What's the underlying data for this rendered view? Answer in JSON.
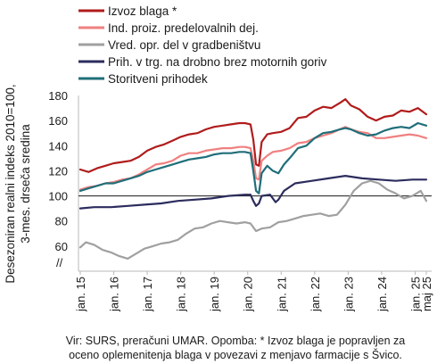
{
  "chart_data": {
    "type": "line",
    "ylabel_lines": [
      "Desezoniran realni indeks 2010=100,",
      "3-mes. drseča sredina"
    ],
    "ylim": [
      40,
      180
    ],
    "yticks": [
      60,
      80,
      100,
      120,
      140,
      160,
      180
    ],
    "axis_break_label": "//",
    "reference_line": 100,
    "x_start": "2015-01",
    "x_end": "2025-05",
    "xticks": [
      {
        "date": "2015-01",
        "label": "jan. 15"
      },
      {
        "date": "2016-01",
        "label": "jan. 16"
      },
      {
        "date": "2017-01",
        "label": "jan. 17"
      },
      {
        "date": "2018-01",
        "label": "jan. 18"
      },
      {
        "date": "2019-01",
        "label": "jan. 19"
      },
      {
        "date": "2020-01",
        "label": "jan. 20"
      },
      {
        "date": "2021-01",
        "label": "jan. 21"
      },
      {
        "date": "2022-01",
        "label": "jan. 22"
      },
      {
        "date": "2023-01",
        "label": "jan. 23"
      },
      {
        "date": "2024-01",
        "label": "jan. 24"
      },
      {
        "date": "2025-01",
        "label": "jan. 25"
      },
      {
        "date": "2025-05",
        "label": "maj 25"
      }
    ],
    "series": [
      {
        "name": "Izvoz blaga *",
        "color": "#b01c1c",
        "points": [
          [
            "2015-01",
            121
          ],
          [
            "2015-04",
            119
          ],
          [
            "2015-07",
            122
          ],
          [
            "2015-10",
            124
          ],
          [
            "2016-01",
            126
          ],
          [
            "2016-04",
            127
          ],
          [
            "2016-07",
            128
          ],
          [
            "2016-10",
            131
          ],
          [
            "2017-01",
            136
          ],
          [
            "2017-04",
            139
          ],
          [
            "2017-07",
            141
          ],
          [
            "2017-10",
            144
          ],
          [
            "2018-01",
            147
          ],
          [
            "2018-04",
            149
          ],
          [
            "2018-07",
            150
          ],
          [
            "2018-10",
            153
          ],
          [
            "2019-01",
            155
          ],
          [
            "2019-04",
            156
          ],
          [
            "2019-07",
            157
          ],
          [
            "2019-10",
            158
          ],
          [
            "2019-12",
            158
          ],
          [
            "2020-02",
            157
          ],
          [
            "2020-03",
            145
          ],
          [
            "2020-04",
            125
          ],
          [
            "2020-05",
            124
          ],
          [
            "2020-06",
            143
          ],
          [
            "2020-08",
            149
          ],
          [
            "2020-10",
            150
          ],
          [
            "2021-01",
            151
          ],
          [
            "2021-04",
            154
          ],
          [
            "2021-07",
            162
          ],
          [
            "2021-10",
            163
          ],
          [
            "2022-01",
            168
          ],
          [
            "2022-04",
            171
          ],
          [
            "2022-07",
            170
          ],
          [
            "2022-10",
            174
          ],
          [
            "2022-12",
            177
          ],
          [
            "2023-02",
            172
          ],
          [
            "2023-05",
            169
          ],
          [
            "2023-08",
            163
          ],
          [
            "2023-11",
            160
          ],
          [
            "2024-02",
            163
          ],
          [
            "2024-05",
            164
          ],
          [
            "2024-08",
            168
          ],
          [
            "2024-11",
            167
          ],
          [
            "2025-02",
            170
          ],
          [
            "2025-05",
            165
          ]
        ]
      },
      {
        "name": "Ind. proiz. predelovalnih dej.",
        "color": "#f08080",
        "points": [
          [
            "2015-01",
            105
          ],
          [
            "2015-04",
            107
          ],
          [
            "2015-07",
            108
          ],
          [
            "2015-10",
            110
          ],
          [
            "2016-01",
            111
          ],
          [
            "2016-04",
            113
          ],
          [
            "2016-07",
            114
          ],
          [
            "2016-10",
            117
          ],
          [
            "2017-01",
            121
          ],
          [
            "2017-04",
            125
          ],
          [
            "2017-07",
            126
          ],
          [
            "2017-10",
            128
          ],
          [
            "2018-01",
            132
          ],
          [
            "2018-04",
            134
          ],
          [
            "2018-07",
            134
          ],
          [
            "2018-10",
            136
          ],
          [
            "2019-01",
            137
          ],
          [
            "2019-04",
            138
          ],
          [
            "2019-07",
            138
          ],
          [
            "2019-10",
            139
          ],
          [
            "2019-12",
            139
          ],
          [
            "2020-02",
            138
          ],
          [
            "2020-03",
            128
          ],
          [
            "2020-04",
            114
          ],
          [
            "2020-05",
            113
          ],
          [
            "2020-06",
            128
          ],
          [
            "2020-08",
            132
          ],
          [
            "2020-10",
            135
          ],
          [
            "2021-01",
            136
          ],
          [
            "2021-04",
            138
          ],
          [
            "2021-07",
            142
          ],
          [
            "2021-10",
            143
          ],
          [
            "2022-01",
            146
          ],
          [
            "2022-04",
            148
          ],
          [
            "2022-07",
            150
          ],
          [
            "2022-10",
            153
          ],
          [
            "2022-12",
            155
          ],
          [
            "2023-02",
            153
          ],
          [
            "2023-05",
            151
          ],
          [
            "2023-08",
            150
          ],
          [
            "2023-11",
            146
          ],
          [
            "2024-02",
            146
          ],
          [
            "2024-05",
            147
          ],
          [
            "2024-08",
            148
          ],
          [
            "2024-11",
            149
          ],
          [
            "2025-02",
            148
          ],
          [
            "2025-05",
            146
          ]
        ]
      },
      {
        "name": "Vred. opr. del v gradbeništvu",
        "color": "#a0a0a0",
        "points": [
          [
            "2015-01",
            59
          ],
          [
            "2015-03",
            63
          ],
          [
            "2015-06",
            61
          ],
          [
            "2015-09",
            57
          ],
          [
            "2015-12",
            55
          ],
          [
            "2016-03",
            52
          ],
          [
            "2016-06",
            50
          ],
          [
            "2016-09",
            54
          ],
          [
            "2016-12",
            58
          ],
          [
            "2017-03",
            60
          ],
          [
            "2017-06",
            62
          ],
          [
            "2017-09",
            63
          ],
          [
            "2017-12",
            65
          ],
          [
            "2018-03",
            70
          ],
          [
            "2018-06",
            74
          ],
          [
            "2018-09",
            75
          ],
          [
            "2018-12",
            78
          ],
          [
            "2019-03",
            80
          ],
          [
            "2019-06",
            79
          ],
          [
            "2019-09",
            78
          ],
          [
            "2019-12",
            79
          ],
          [
            "2020-02",
            78
          ],
          [
            "2020-04",
            72
          ],
          [
            "2020-06",
            74
          ],
          [
            "2020-09",
            75
          ],
          [
            "2020-12",
            79
          ],
          [
            "2021-03",
            80
          ],
          [
            "2021-06",
            82
          ],
          [
            "2021-09",
            84
          ],
          [
            "2021-12",
            85
          ],
          [
            "2022-03",
            86
          ],
          [
            "2022-06",
            84
          ],
          [
            "2022-09",
            85
          ],
          [
            "2022-12",
            93
          ],
          [
            "2023-03",
            104
          ],
          [
            "2023-06",
            110
          ],
          [
            "2023-09",
            112
          ],
          [
            "2023-12",
            110
          ],
          [
            "2024-03",
            105
          ],
          [
            "2024-06",
            102
          ],
          [
            "2024-09",
            98
          ],
          [
            "2024-12",
            100
          ],
          [
            "2025-03",
            104
          ],
          [
            "2025-05",
            96
          ]
        ]
      },
      {
        "name": "Prih. v trg. na drobno brez motornih goriv",
        "color": "#2c2c5e",
        "points": [
          [
            "2015-01",
            90
          ],
          [
            "2015-06",
            91
          ],
          [
            "2015-12",
            91
          ],
          [
            "2016-06",
            92
          ],
          [
            "2016-12",
            93
          ],
          [
            "2017-06",
            94
          ],
          [
            "2017-12",
            96
          ],
          [
            "2018-06",
            97
          ],
          [
            "2018-12",
            98
          ],
          [
            "2019-06",
            100
          ],
          [
            "2019-12",
            101
          ],
          [
            "2020-02",
            101
          ],
          [
            "2020-03",
            96
          ],
          [
            "2020-04",
            92
          ],
          [
            "2020-05",
            94
          ],
          [
            "2020-06",
            100
          ],
          [
            "2020-09",
            101
          ],
          [
            "2020-10",
            98
          ],
          [
            "2020-11",
            95
          ],
          [
            "2020-12",
            97
          ],
          [
            "2021-02",
            104
          ],
          [
            "2021-06",
            110
          ],
          [
            "2021-12",
            112
          ],
          [
            "2022-06",
            114
          ],
          [
            "2022-12",
            116
          ],
          [
            "2023-06",
            114
          ],
          [
            "2023-12",
            113
          ],
          [
            "2024-06",
            112
          ],
          [
            "2024-12",
            113
          ],
          [
            "2025-05",
            113
          ]
        ]
      },
      {
        "name": "Storitveni prihodek",
        "color": "#1f6e7a",
        "points": [
          [
            "2015-01",
            104
          ],
          [
            "2015-04",
            106
          ],
          [
            "2015-07",
            108
          ],
          [
            "2015-10",
            110
          ],
          [
            "2016-01",
            110
          ],
          [
            "2016-04",
            112
          ],
          [
            "2016-07",
            114
          ],
          [
            "2016-10",
            116
          ],
          [
            "2017-01",
            119
          ],
          [
            "2017-04",
            121
          ],
          [
            "2017-07",
            123
          ],
          [
            "2017-10",
            125
          ],
          [
            "2018-01",
            127
          ],
          [
            "2018-04",
            129
          ],
          [
            "2018-07",
            130
          ],
          [
            "2018-10",
            131
          ],
          [
            "2019-01",
            133
          ],
          [
            "2019-04",
            134
          ],
          [
            "2019-07",
            134
          ],
          [
            "2019-10",
            135
          ],
          [
            "2019-12",
            135
          ],
          [
            "2020-02",
            134
          ],
          [
            "2020-03",
            120
          ],
          [
            "2020-04",
            104
          ],
          [
            "2020-05",
            102
          ],
          [
            "2020-06",
            118
          ],
          [
            "2020-08",
            124
          ],
          [
            "2020-10",
            120
          ],
          [
            "2020-12",
            118
          ],
          [
            "2021-02",
            125
          ],
          [
            "2021-04",
            130
          ],
          [
            "2021-07",
            138
          ],
          [
            "2021-10",
            140
          ],
          [
            "2022-01",
            146
          ],
          [
            "2022-04",
            150
          ],
          [
            "2022-07",
            151
          ],
          [
            "2022-10",
            153
          ],
          [
            "2022-12",
            154
          ],
          [
            "2023-02",
            153
          ],
          [
            "2023-05",
            150
          ],
          [
            "2023-08",
            148
          ],
          [
            "2023-11",
            149
          ],
          [
            "2024-02",
            152
          ],
          [
            "2024-05",
            154
          ],
          [
            "2024-08",
            155
          ],
          [
            "2024-11",
            154
          ],
          [
            "2025-02",
            158
          ],
          [
            "2025-05",
            156
          ]
        ]
      }
    ],
    "legend_position": "top"
  },
  "footnote_lines": [
    "Vir: SURS, preračuni UMAR. Opomba: * Izvoz blaga je popravljen za",
    "oceno oplemenitenja blaga v povezavi z menjavo farmacije s Švico."
  ]
}
